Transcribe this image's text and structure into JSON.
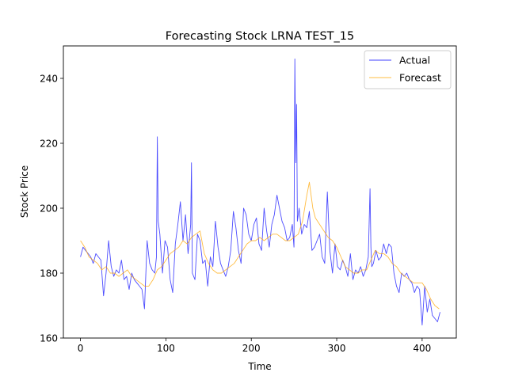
{
  "chart_data": {
    "type": "line",
    "title": "Forecasting Stock LRNA TEST_15",
    "xlabel": "Time",
    "ylabel": "Stock Price",
    "xlim": [
      -20,
      440
    ],
    "ylim": [
      160,
      250
    ],
    "xticks": [
      0,
      100,
      200,
      300,
      400
    ],
    "yticks": [
      160,
      180,
      200,
      220,
      240
    ],
    "grid": false,
    "legend_position": "top-right",
    "series": [
      {
        "name": "Actual",
        "color": "#0000ff",
        "x": [
          0,
          3,
          6,
          9,
          12,
          15,
          18,
          21,
          24,
          27,
          30,
          33,
          36,
          39,
          42,
          45,
          48,
          51,
          54,
          57,
          60,
          63,
          66,
          69,
          72,
          75,
          78,
          81,
          84,
          87,
          89,
          90,
          91,
          93,
          96,
          99,
          102,
          105,
          108,
          111,
          114,
          117,
          120,
          123,
          126,
          129,
          130,
          131,
          134,
          137,
          140,
          143,
          146,
          149,
          152,
          155,
          158,
          161,
          164,
          167,
          170,
          173,
          176,
          179,
          182,
          185,
          188,
          191,
          194,
          197,
          200,
          203,
          206,
          209,
          212,
          215,
          218,
          221,
          224,
          227,
          230,
          233,
          236,
          239,
          242,
          245,
          248,
          250,
          251,
          252,
          253,
          254,
          256,
          259,
          262,
          265,
          268,
          271,
          274,
          277,
          280,
          283,
          286,
          289,
          292,
          295,
          298,
          301,
          304,
          307,
          310,
          313,
          316,
          319,
          322,
          325,
          328,
          331,
          334,
          337,
          339,
          340,
          341,
          343,
          346,
          349,
          352,
          355,
          358,
          361,
          364,
          367,
          370,
          373,
          376,
          379,
          382,
          385,
          388,
          391,
          394,
          397,
          400,
          403,
          406,
          409,
          412,
          415,
          418,
          421
        ],
        "y": [
          185,
          188,
          187,
          186,
          185,
          183,
          186,
          185,
          184,
          173,
          180,
          190,
          182,
          179,
          181,
          180,
          184,
          178,
          179,
          175,
          180,
          178,
          177,
          176,
          175,
          169,
          190,
          183,
          181,
          180,
          185,
          222,
          196,
          192,
          180,
          190,
          188,
          178,
          174,
          189,
          195,
          202,
          190,
          198,
          186,
          195,
          214,
          180,
          178,
          192,
          190,
          183,
          184,
          176,
          185,
          182,
          196,
          188,
          183,
          181,
          179,
          182,
          187,
          199,
          194,
          187,
          183,
          200,
          198,
          192,
          190,
          195,
          197,
          189,
          187,
          200,
          193,
          188,
          195,
          198,
          204,
          200,
          196,
          194,
          190,
          191,
          195,
          188,
          246,
          214,
          232,
          196,
          200,
          192,
          195,
          194,
          199,
          187,
          188,
          190,
          192,
          185,
          183,
          205,
          187,
          180,
          189,
          182,
          181,
          184,
          182,
          179,
          186,
          178,
          181,
          180,
          182,
          179,
          181,
          185,
          206,
          188,
          182,
          183,
          187,
          184,
          185,
          189,
          186,
          189,
          188,
          180,
          176,
          174,
          180,
          179,
          180,
          178,
          177,
          174,
          176,
          175,
          164,
          176,
          168,
          172,
          167,
          166,
          165,
          168
        ]
      },
      {
        "name": "Forecast",
        "color": "#ffa500",
        "x": [
          0,
          5,
          10,
          15,
          20,
          25,
          30,
          35,
          40,
          45,
          50,
          55,
          60,
          65,
          70,
          75,
          80,
          85,
          90,
          95,
          100,
          105,
          110,
          115,
          120,
          125,
          130,
          135,
          140,
          145,
          150,
          155,
          160,
          165,
          170,
          175,
          180,
          185,
          190,
          195,
          200,
          205,
          210,
          215,
          220,
          225,
          230,
          235,
          240,
          245,
          250,
          255,
          260,
          265,
          268,
          272,
          275,
          280,
          285,
          290,
          295,
          300,
          305,
          310,
          315,
          320,
          325,
          330,
          335,
          340,
          345,
          350,
          355,
          360,
          365,
          370,
          375,
          380,
          385,
          390,
          395,
          400,
          405,
          410,
          415,
          420
        ],
        "y": [
          190,
          188,
          185,
          184,
          183,
          181,
          182,
          180,
          180,
          179,
          180,
          181,
          179,
          178,
          177,
          176,
          176,
          178,
          181,
          182,
          184,
          186,
          187,
          188,
          190,
          189,
          191,
          192,
          193,
          186,
          183,
          181,
          180,
          180,
          181,
          182,
          183,
          185,
          187,
          189,
          190,
          190,
          191,
          190,
          191,
          192,
          192,
          191,
          190,
          190,
          191,
          192,
          196,
          204,
          208,
          200,
          197,
          195,
          193,
          191,
          190,
          188,
          185,
          182,
          181,
          180,
          180,
          181,
          181,
          184,
          187,
          186,
          186,
          185,
          183,
          182,
          180,
          179,
          178,
          177,
          177,
          177,
          175,
          172,
          170,
          169
        ]
      }
    ]
  }
}
